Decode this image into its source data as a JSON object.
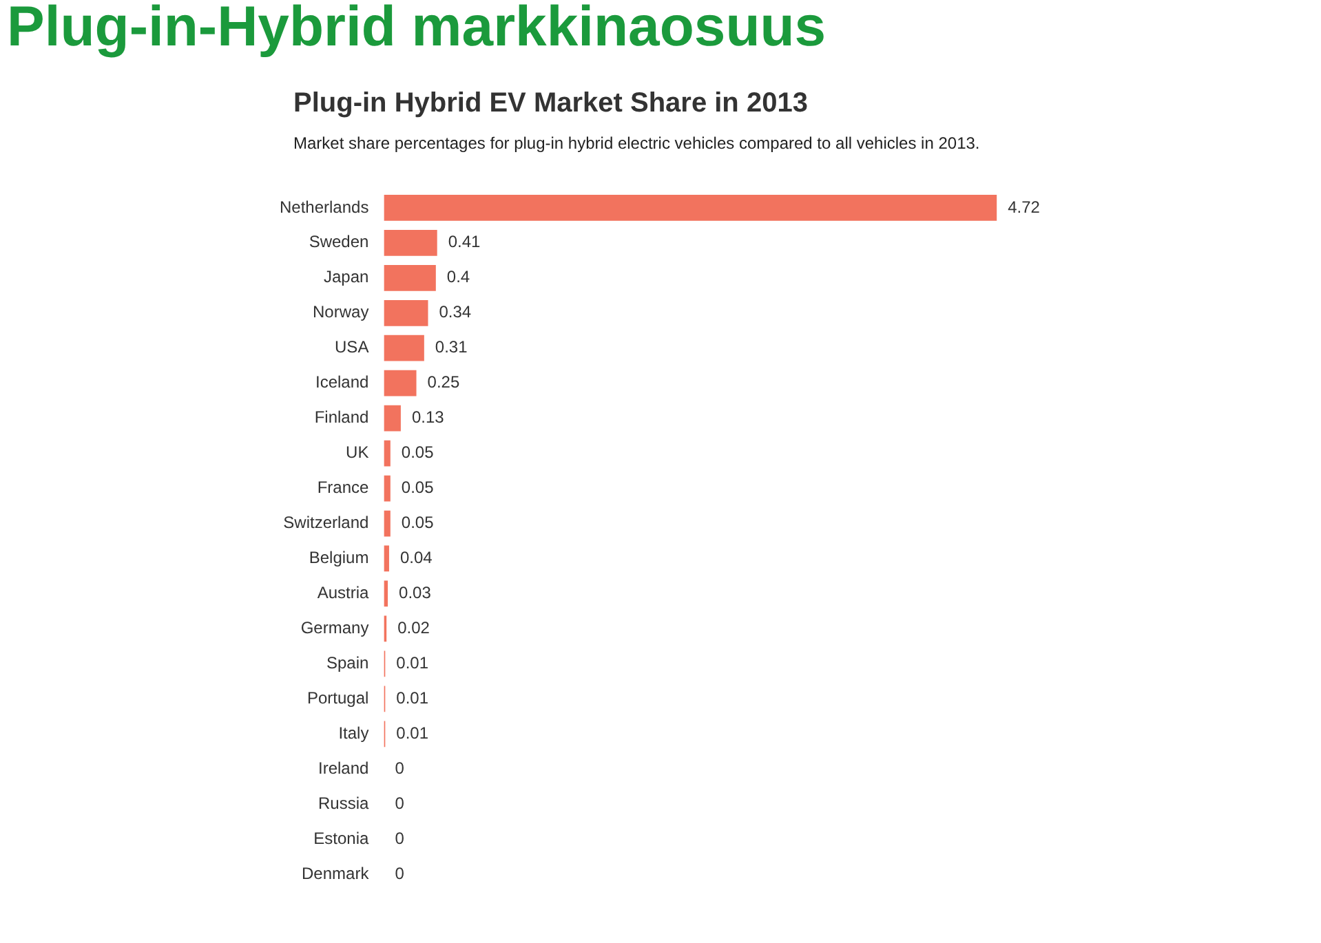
{
  "chart_data": {
    "type": "bar",
    "orientation": "horizontal",
    "title": "Plug-in-Hybrid markkinaosuus",
    "subtitle": "Plug-in Hybrid EV Market Share in 2013",
    "annotations": [
      "Market share percentages for plug-in hybrid electric vehicles compared to all vehicles in 2013."
    ],
    "categories": [
      "Netherlands",
      "Sweden",
      "Japan",
      "Norway",
      "USA",
      "Iceland",
      "Finland",
      "UK",
      "France",
      "Switzerland",
      "Belgium",
      "Austria",
      "Germany",
      "Spain",
      "Portugal",
      "Italy",
      "Ireland",
      "Russia",
      "Estonia",
      "Denmark"
    ],
    "values": [
      4.72,
      0.41,
      0.4,
      0.34,
      0.31,
      0.25,
      0.13,
      0.05,
      0.05,
      0.05,
      0.04,
      0.03,
      0.02,
      0.01,
      0.01,
      0.01,
      0,
      0,
      0,
      0
    ],
    "color": "#f2735e",
    "data_labels": true
  }
}
